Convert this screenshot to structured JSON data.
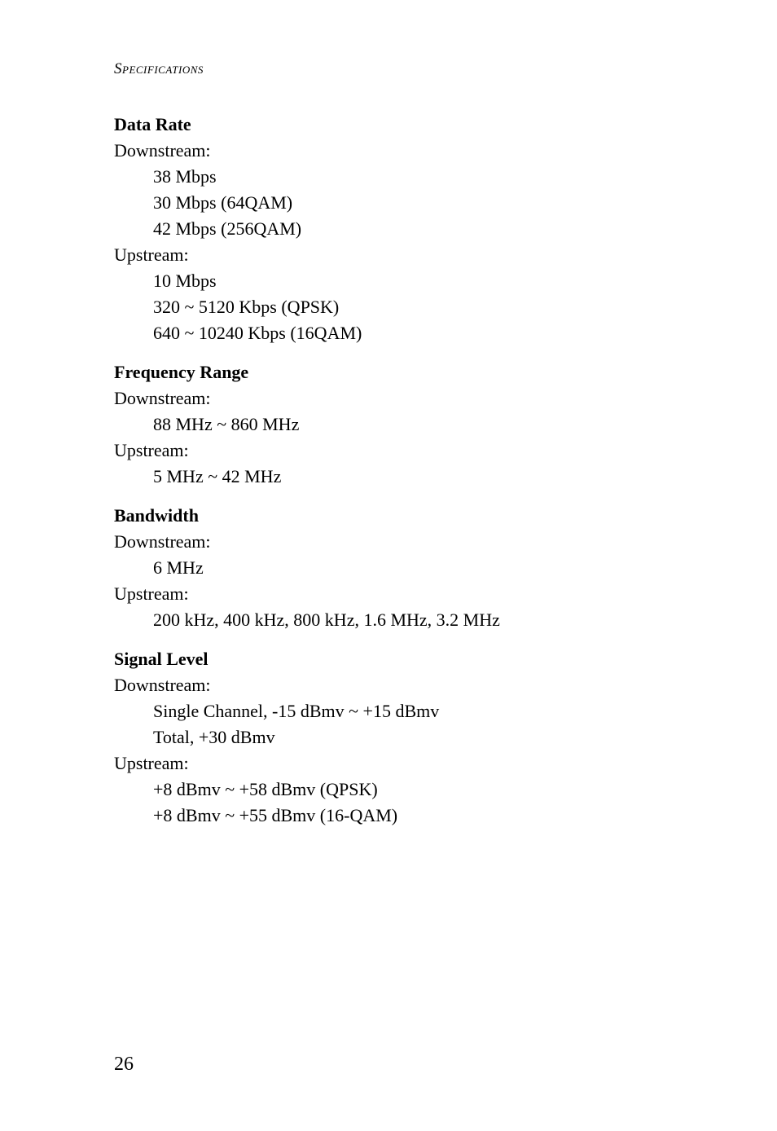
{
  "runningHeader": "Specifications",
  "pageNumber": "26",
  "sections": {
    "dataRate": {
      "title": "Data Rate",
      "down": {
        "label": "Downstream:",
        "lines": [
          "38 Mbps",
          "30 Mbps (64QAM)",
          "42 Mbps (256QAM)"
        ]
      },
      "up": {
        "label": "Upstream:",
        "lines": [
          "10 Mbps",
          "320 ~ 5120 Kbps (QPSK)",
          "640 ~ 10240 Kbps (16QAM)"
        ]
      }
    },
    "freqRange": {
      "title": "Frequency Range",
      "down": {
        "label": "Downstream:",
        "lines": [
          "88 MHz ~ 860 MHz"
        ]
      },
      "up": {
        "label": "Upstream:",
        "lines": [
          "5 MHz ~ 42 MHz"
        ]
      }
    },
    "bandwidth": {
      "title": "Bandwidth",
      "down": {
        "label": "Downstream:",
        "lines": [
          "6 MHz"
        ]
      },
      "up": {
        "label": "Upstream:",
        "lines": [
          "200 kHz, 400 kHz, 800 kHz, 1.6 MHz, 3.2 MHz"
        ]
      }
    },
    "signalLevel": {
      "title": "Signal Level",
      "down": {
        "label": "Downstream:",
        "lines": [
          "Single Channel, -15 dBmv ~ +15 dBmv",
          "Total, +30 dBmv"
        ]
      },
      "up": {
        "label": "Upstream:",
        "lines": [
          "+8 dBmv ~ +58 dBmv (QPSK)",
          "+8 dBmv ~ +55 dBmv (16-QAM)"
        ]
      }
    }
  }
}
